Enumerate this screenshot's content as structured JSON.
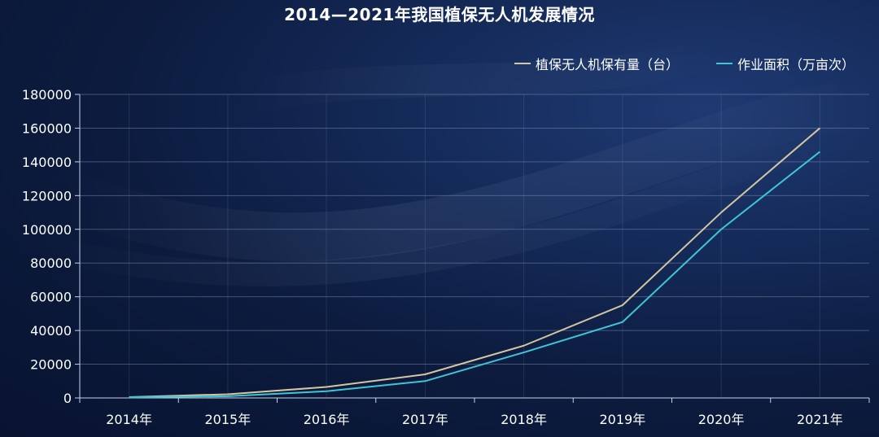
{
  "colors": {
    "series_1": "#d3c7a2",
    "series_2": "#3ec6d6",
    "grid": "#8a9bbd",
    "axis": "#c9d3e6",
    "text": "#ffffff"
  },
  "chart_data": {
    "type": "line",
    "title": "2014—2021年我国植保无人机发展情况",
    "categories": [
      "2014年",
      "2015年",
      "2016年",
      "2017年",
      "2018年",
      "2019年",
      "2020年",
      "2021年"
    ],
    "series": [
      {
        "name": "植保无人机保有量（台）",
        "values": [
          500,
          2200,
          6500,
          14000,
          31000,
          55000,
          110000,
          160000
        ]
      },
      {
        "name": "作业面积（万亩次）",
        "values": [
          400,
          1000,
          4000,
          10000,
          27000,
          45000,
          100000,
          146000
        ]
      }
    ],
    "ylim": [
      0,
      180000
    ],
    "yticks": [
      0,
      20000,
      40000,
      60000,
      80000,
      100000,
      120000,
      140000,
      160000,
      180000
    ],
    "xlabel": "",
    "ylabel": "",
    "grid": true,
    "legend_position": "top-right"
  }
}
